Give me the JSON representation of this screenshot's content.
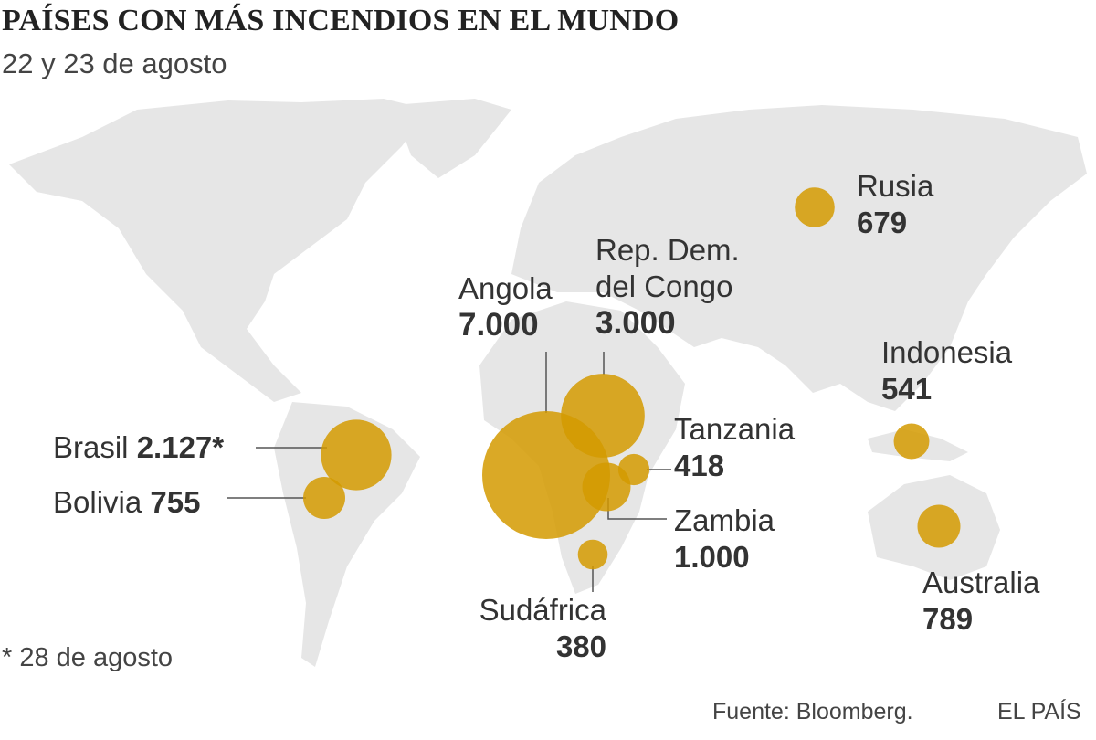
{
  "title": "PAÍSES CON MÁS INCENDIOS EN EL MUNDO",
  "subtitle": "22 y 23 de agosto",
  "colors": {
    "bubble": "#d39a00",
    "land": "#e6e6e6",
    "leader": "#555555"
  },
  "countries": [
    {
      "name": "Brasil",
      "value": 2127,
      "value_label": "2.127*"
    },
    {
      "name": "Bolivia",
      "value": 755,
      "value_label": "755"
    },
    {
      "name": "Angola",
      "value": 7000,
      "value_label": "7.000"
    },
    {
      "name": "Rep. Dem. del Congo",
      "name_line1": "Rep. Dem.",
      "name_line2": "del Congo",
      "value": 3000,
      "value_label": "3.000"
    },
    {
      "name": "Tanzania",
      "value": 418,
      "value_label": "418"
    },
    {
      "name": "Zambia",
      "value": 1000,
      "value_label": "1.000"
    },
    {
      "name": "Sudáfrica",
      "value": 380,
      "value_label": "380"
    },
    {
      "name": "Rusia",
      "value": 679,
      "value_label": "679"
    },
    {
      "name": "Indonesia",
      "value": 541,
      "value_label": "541"
    },
    {
      "name": "Australia",
      "value": 789,
      "value_label": "789"
    }
  ],
  "footnote": "* 28 de agosto",
  "source": "Fuente: Bloomberg.",
  "brand": "EL PAÍS"
}
